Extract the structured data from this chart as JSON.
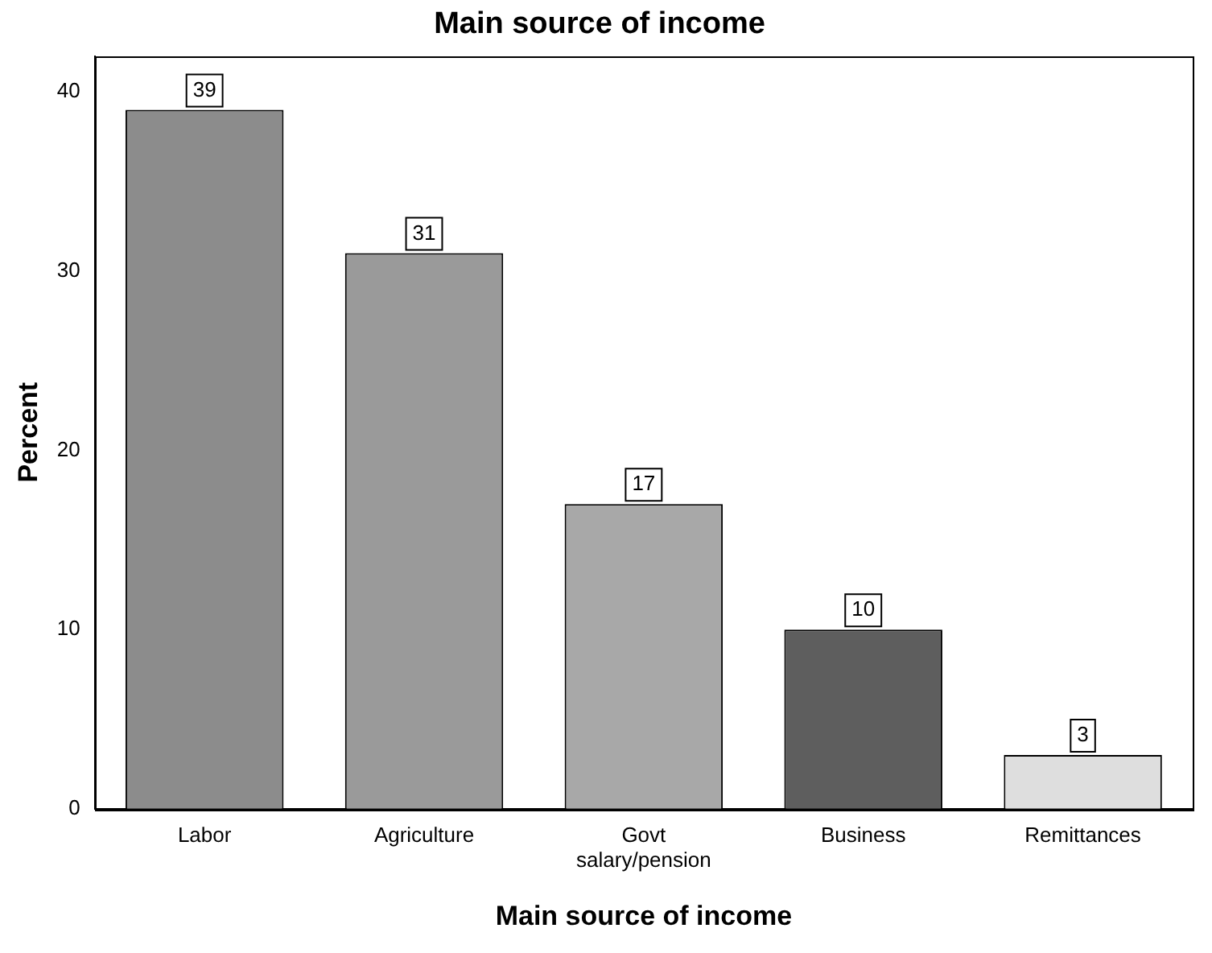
{
  "chart_data": {
    "type": "bar",
    "title": "Main source of income",
    "xlabel": "Main source of income",
    "ylabel": "Percent",
    "categories": [
      "Labor",
      "Agriculture",
      "Govt salary/pension",
      "Business",
      "Remittances"
    ],
    "values": [
      39,
      31,
      17,
      10,
      3
    ],
    "colors": [
      "#8c8c8c",
      "#9a9a9a",
      "#a8a8a8",
      "#5e5e5e",
      "#dedede"
    ],
    "ylim": [
      0,
      42
    ],
    "yticks": [
      0,
      10,
      20,
      30,
      40
    ],
    "grid": false,
    "legend": false,
    "data_labels": true
  }
}
